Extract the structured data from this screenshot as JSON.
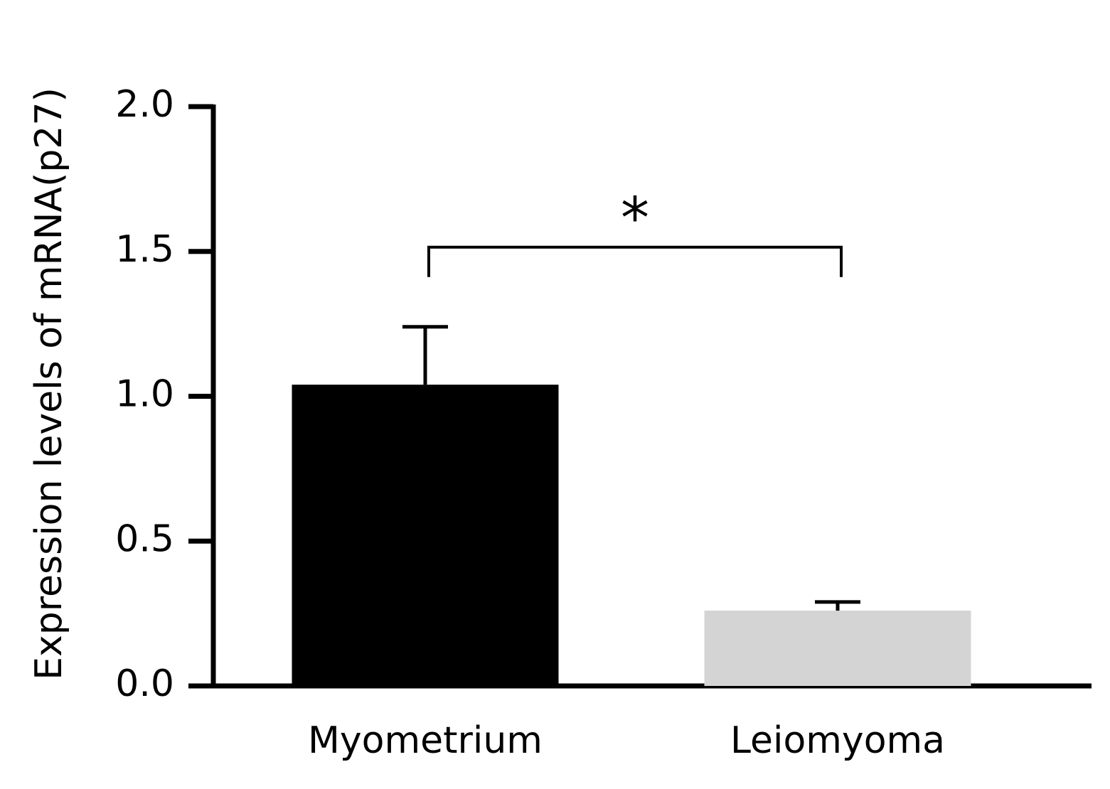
{
  "chart_data": {
    "type": "bar",
    "y_label": "Expression levels of mRNA(p27)",
    "categories": [
      "Myometrium",
      "Leiomyoma"
    ],
    "values": [
      1.04,
      0.26
    ],
    "errors": [
      0.2,
      0.03
    ],
    "colors": [
      "#000000",
      "#d4d4d4"
    ],
    "annotation": "*",
    "ylim": [
      0,
      2.0
    ],
    "yticks": [
      {
        "value": 0,
        "label": "0.0"
      },
      0.5,
      {
        "value": 1,
        "label": "1.0"
      },
      1.5,
      {
        "value": 2,
        "label": "2.0"
      }
    ],
    "grid": false
  }
}
